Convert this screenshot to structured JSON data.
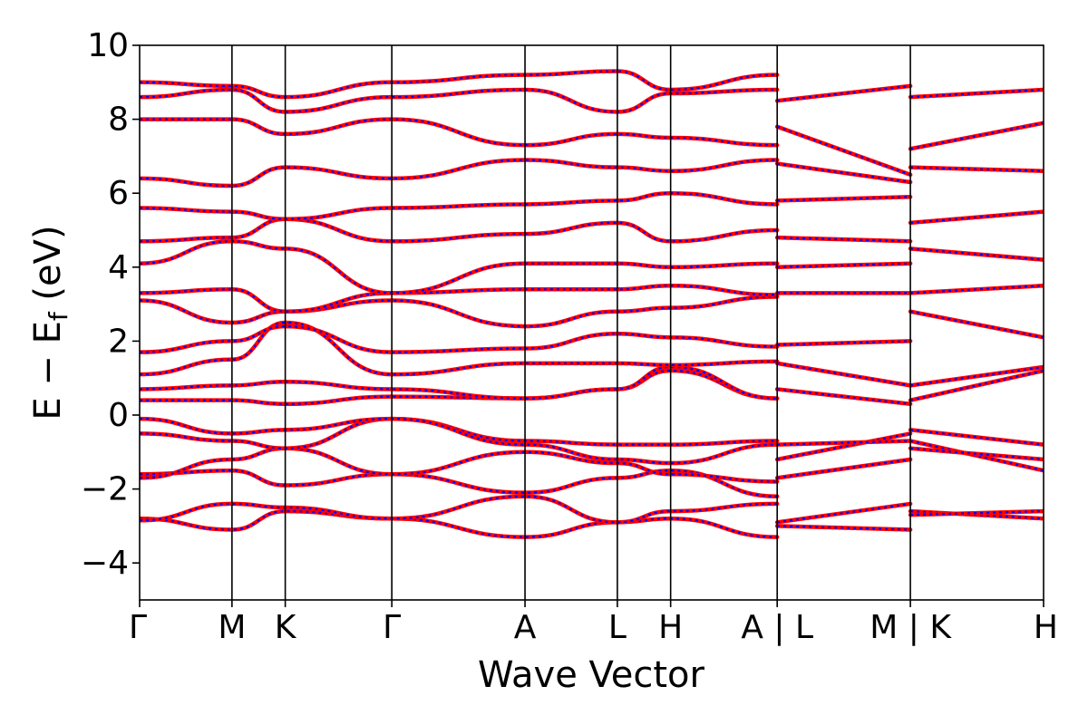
{
  "chart_data": {
    "type": "line",
    "title": "",
    "xlabel": "Wave Vector",
    "ylabel": "E − E",
    "ylabel_sub": "f",
    "ylabel_unit": " (eV)",
    "ylim": [
      -5,
      10
    ],
    "yticks": [
      -4,
      -2,
      0,
      2,
      4,
      6,
      8,
      10
    ],
    "ytick_labels": [
      "−4",
      "−2",
      "0",
      "2",
      "4",
      "6",
      "8",
      "10"
    ],
    "grid": false,
    "legend": "none",
    "kpath_positions": [
      0,
      1.04,
      1.64,
      2.84,
      4.34,
      5.38,
      5.98,
      7.18,
      8.68,
      10.18
    ],
    "kpath_labels": [
      "Γ",
      "M",
      "K",
      "Γ",
      "A",
      "L",
      "H",
      "A | L",
      "M | K",
      "H"
    ],
    "segment_breaks": [
      7.18,
      8.68
    ],
    "line_styles": {
      "primary_color": "#ff0000",
      "overlay_color": "#0000ff",
      "overlay_dashed": true
    },
    "series_bands": [
      {
        "x": [
          0,
          1.04,
          1.64,
          2.84,
          4.34,
          5.38,
          5.98,
          7.18
        ],
        "y": [
          -2.8,
          -3.1,
          -2.6,
          -2.8,
          -3.3,
          -2.9,
          -2.8,
          -3.3
        ]
      },
      {
        "x": [
          0,
          1.04,
          1.64,
          2.84,
          4.34,
          5.38,
          5.98,
          7.18
        ],
        "y": [
          -2.85,
          -2.4,
          -2.5,
          -2.8,
          -2.2,
          -2.9,
          -2.6,
          -2.4
        ]
      },
      {
        "x": [
          0,
          1.04,
          1.64,
          2.84,
          4.34,
          5.38,
          5.98,
          7.18
        ],
        "y": [
          -1.6,
          -1.5,
          -1.9,
          -1.6,
          -2.1,
          -1.7,
          -1.5,
          -2.2
        ]
      },
      {
        "x": [
          0,
          1.04,
          1.64,
          2.84,
          4.34,
          5.38,
          5.98,
          7.18
        ],
        "y": [
          -1.7,
          -1.2,
          -0.9,
          -1.6,
          -1.0,
          -1.3,
          -1.6,
          -1.8
        ]
      },
      {
        "x": [
          0,
          1.04,
          1.64,
          2.84,
          4.34,
          5.38,
          5.98,
          7.18
        ],
        "y": [
          -0.5,
          -0.7,
          -0.9,
          -0.1,
          -0.7,
          -0.8,
          -0.8,
          -0.7
        ]
      },
      {
        "x": [
          0,
          1.04,
          1.64,
          2.84,
          4.34,
          5.38,
          5.98,
          7.18
        ],
        "y": [
          -0.1,
          -0.5,
          -0.4,
          -0.1,
          -0.8,
          -1.2,
          -1.3,
          -0.8
        ]
      },
      {
        "x": [
          0,
          1.04,
          1.64,
          2.84,
          4.34,
          5.38,
          5.98,
          7.18
        ],
        "y": [
          0.4,
          0.4,
          0.3,
          0.5,
          0.45,
          0.7,
          1.2,
          0.45
        ]
      },
      {
        "x": [
          0,
          1.04,
          1.64,
          2.84,
          4.34,
          5.38,
          5.98,
          7.18
        ],
        "y": [
          0.7,
          0.8,
          0.9,
          0.7,
          0.45,
          0.7,
          1.3,
          0.45
        ]
      },
      {
        "x": [
          0,
          1.04,
          1.64,
          2.84,
          4.34,
          5.38,
          5.98,
          7.18
        ],
        "y": [
          1.1,
          1.5,
          2.5,
          1.1,
          1.4,
          1.4,
          1.35,
          1.45
        ]
      },
      {
        "x": [
          0,
          1.04,
          1.64,
          2.84,
          4.34,
          5.38,
          5.98,
          7.18
        ],
        "y": [
          1.7,
          2.0,
          2.4,
          1.7,
          1.8,
          2.2,
          2.1,
          1.85
        ]
      },
      {
        "x": [
          0,
          1.04,
          1.64,
          2.84,
          4.34,
          5.38,
          5.98,
          7.18
        ],
        "y": [
          3.1,
          2.5,
          2.8,
          3.1,
          2.4,
          2.8,
          2.9,
          3.2
        ]
      },
      {
        "x": [
          0,
          1.04,
          1.64,
          2.84,
          4.34,
          5.38,
          5.98,
          7.18
        ],
        "y": [
          3.3,
          3.4,
          2.8,
          3.3,
          3.4,
          3.4,
          3.5,
          3.25
        ]
      },
      {
        "x": [
          0,
          1.04,
          1.64,
          2.84,
          4.34,
          5.38,
          5.98,
          7.18
        ],
        "y": [
          4.1,
          4.7,
          4.5,
          3.3,
          4.1,
          4.1,
          4.0,
          4.1
        ]
      },
      {
        "x": [
          0,
          1.04,
          1.64,
          2.84,
          4.34,
          5.38,
          5.98,
          7.18
        ],
        "y": [
          4.7,
          4.8,
          5.3,
          4.7,
          4.9,
          5.2,
          4.7,
          5.0
        ]
      },
      {
        "x": [
          0,
          1.04,
          1.64,
          2.84,
          4.34,
          5.38,
          5.98,
          7.18
        ],
        "y": [
          5.6,
          5.5,
          5.3,
          5.6,
          5.7,
          5.8,
          6.0,
          5.7
        ]
      },
      {
        "x": [
          0,
          1.04,
          1.64,
          2.84,
          4.34,
          5.38,
          5.98,
          7.18
        ],
        "y": [
          6.4,
          6.2,
          6.7,
          6.4,
          6.9,
          6.7,
          6.6,
          6.9
        ]
      },
      {
        "x": [
          0,
          1.04,
          1.64,
          2.84,
          4.34,
          5.38,
          5.98,
          7.18
        ],
        "y": [
          8.0,
          8.0,
          7.6,
          8.0,
          7.3,
          7.6,
          7.5,
          7.3
        ]
      },
      {
        "x": [
          0,
          1.04,
          1.64,
          2.84,
          4.34,
          5.38,
          5.98,
          7.18
        ],
        "y": [
          8.6,
          8.8,
          8.2,
          8.6,
          8.8,
          8.2,
          8.7,
          8.8
        ]
      },
      {
        "x": [
          0,
          1.04,
          1.64,
          2.84,
          4.34,
          5.38,
          5.98,
          7.18
        ],
        "y": [
          9.0,
          8.9,
          8.6,
          9.0,
          9.2,
          9.3,
          8.8,
          9.2
        ]
      },
      {
        "x": [
          7.18,
          8.68
        ],
        "y": [
          -3.0,
          -3.1
        ]
      },
      {
        "x": [
          7.18,
          8.68
        ],
        "y": [
          -2.9,
          -2.4
        ]
      },
      {
        "x": [
          7.18,
          8.68
        ],
        "y": [
          -1.7,
          -1.2
        ]
      },
      {
        "x": [
          7.18,
          8.68
        ],
        "y": [
          -1.2,
          -0.5
        ]
      },
      {
        "x": [
          7.18,
          8.68
        ],
        "y": [
          -0.8,
          -0.7
        ]
      },
      {
        "x": [
          7.18,
          8.68
        ],
        "y": [
          0.7,
          0.3
        ]
      },
      {
        "x": [
          7.18,
          8.68
        ],
        "y": [
          1.4,
          0.8
        ]
      },
      {
        "x": [
          7.18,
          8.68
        ],
        "y": [
          1.9,
          2.0
        ]
      },
      {
        "x": [
          7.18,
          8.68
        ],
        "y": [
          3.3,
          3.3
        ]
      },
      {
        "x": [
          7.18,
          8.68
        ],
        "y": [
          4.0,
          4.1
        ]
      },
      {
        "x": [
          7.18,
          8.68
        ],
        "y": [
          4.8,
          4.7
        ]
      },
      {
        "x": [
          7.18,
          8.68
        ],
        "y": [
          5.8,
          5.9
        ]
      },
      {
        "x": [
          7.18,
          8.68
        ],
        "y": [
          6.8,
          6.3
        ]
      },
      {
        "x": [
          7.18,
          8.68
        ],
        "y": [
          7.8,
          6.5
        ]
      },
      {
        "x": [
          7.18,
          8.68
        ],
        "y": [
          8.5,
          8.9
        ]
      },
      {
        "x": [
          8.68,
          10.18
        ],
        "y": [
          -2.6,
          -2.8
        ]
      },
      {
        "x": [
          8.68,
          10.18
        ],
        "y": [
          -2.7,
          -2.6
        ]
      },
      {
        "x": [
          8.68,
          10.18
        ],
        "y": [
          -0.4,
          -0.8
        ]
      },
      {
        "x": [
          8.68,
          10.18
        ],
        "y": [
          -0.7,
          -1.5
        ]
      },
      {
        "x": [
          8.68,
          10.18
        ],
        "y": [
          -0.9,
          -1.2
        ]
      },
      {
        "x": [
          8.68,
          10.18
        ],
        "y": [
          0.4,
          1.2
        ]
      },
      {
        "x": [
          8.68,
          10.18
        ],
        "y": [
          0.8,
          1.3
        ]
      },
      {
        "x": [
          8.68,
          10.18
        ],
        "y": [
          2.8,
          2.1
        ]
      },
      {
        "x": [
          8.68,
          10.18
        ],
        "y": [
          3.3,
          3.5
        ]
      },
      {
        "x": [
          8.68,
          10.18
        ],
        "y": [
          4.5,
          4.2
        ]
      },
      {
        "x": [
          8.68,
          10.18
        ],
        "y": [
          5.2,
          5.5
        ]
      },
      {
        "x": [
          8.68,
          10.18
        ],
        "y": [
          6.7,
          6.6
        ]
      },
      {
        "x": [
          8.68,
          10.18
        ],
        "y": [
          7.2,
          7.9
        ]
      },
      {
        "x": [
          8.68,
          10.18
        ],
        "y": [
          8.6,
          8.8
        ]
      }
    ]
  }
}
